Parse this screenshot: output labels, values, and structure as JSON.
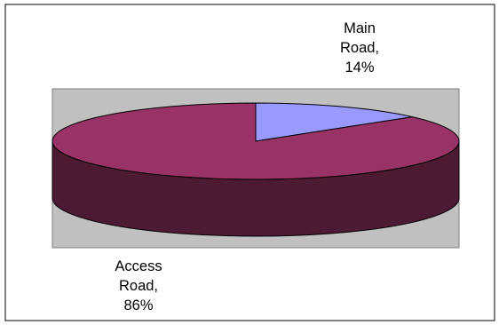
{
  "chart_data": {
    "type": "pie",
    "style": "3d",
    "slices": [
      {
        "name": "Main Road",
        "value": 14,
        "color": "#9999ff",
        "label_lines": [
          "Main",
          "Road,",
          "14%"
        ]
      },
      {
        "name": "Access Road",
        "value": 86,
        "color": "#993366",
        "label_lines": [
          "Access",
          "Road,",
          "86%"
        ]
      }
    ],
    "plot_area_color": "#c0c0c0",
    "legend": "none"
  }
}
